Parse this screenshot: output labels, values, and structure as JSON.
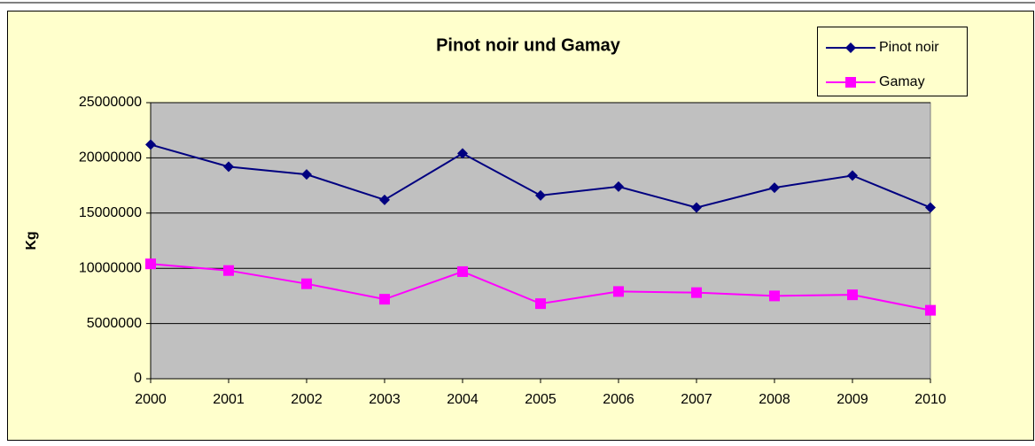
{
  "chart_data": {
    "type": "line",
    "title": "Pinot noir und Gamay",
    "y_label": "Kg",
    "categories": [
      "2000",
      "2001",
      "2002",
      "2003",
      "2004",
      "2005",
      "2006",
      "2007",
      "2008",
      "2009",
      "2010"
    ],
    "series": [
      {
        "name": "Pinot noir",
        "color": "#000080",
        "marker": "diamond",
        "values": [
          21200000,
          19200000,
          18500000,
          16200000,
          20400000,
          16600000,
          17400000,
          15500000,
          17300000,
          18400000,
          15500000
        ]
      },
      {
        "name": "Gamay",
        "color": "#ff00ff",
        "marker": "square",
        "values": [
          10400000,
          9800000,
          8600000,
          7200000,
          9700000,
          6800000,
          7900000,
          7800000,
          7500000,
          7600000,
          6200000
        ]
      }
    ],
    "ylim": [
      0,
      25000000
    ],
    "yticks": [
      0,
      5000000,
      10000000,
      15000000,
      20000000,
      25000000
    ],
    "grid": true,
    "legend": "top-right"
  }
}
